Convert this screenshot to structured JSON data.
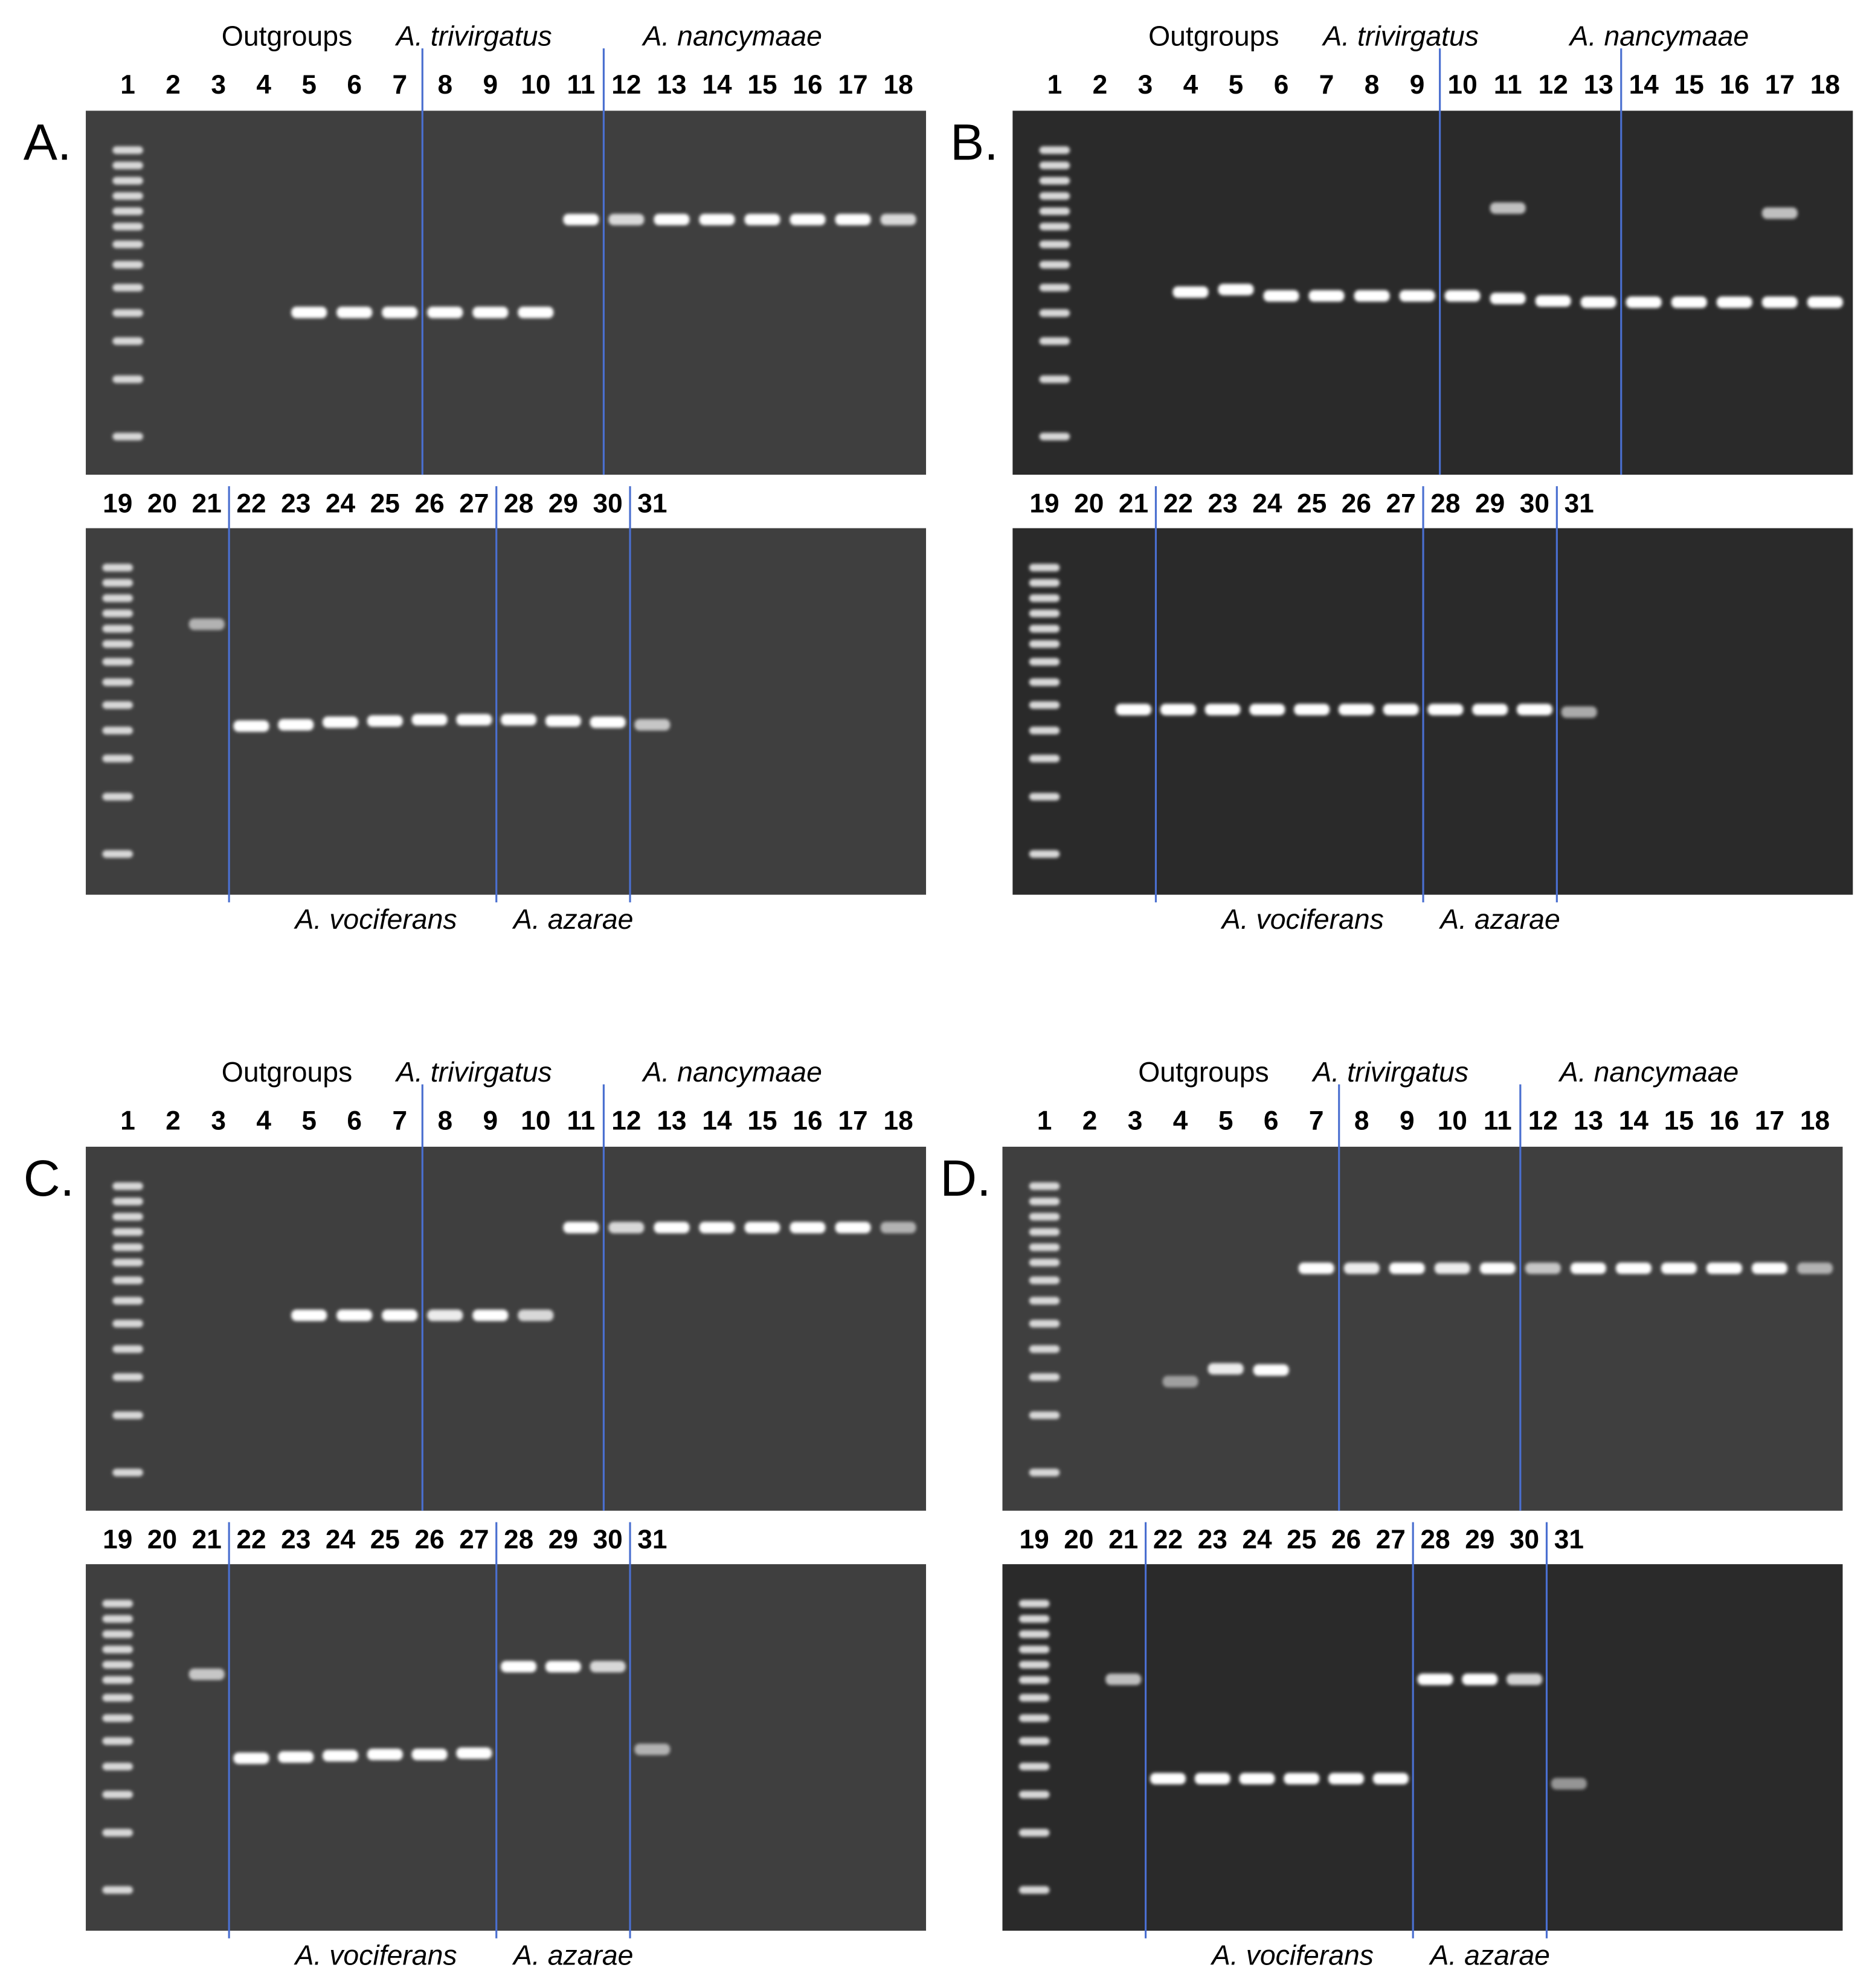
{
  "panels": [
    {
      "label": "A.",
      "top": {
        "groups": [
          "Outgroups",
          "A. trivirgatus",
          "A. nancymaae"
        ],
        "lanes": [
          "1",
          "2",
          "3",
          "4",
          "5",
          "6",
          "7",
          "8",
          "9",
          "10",
          "11",
          "12",
          "13",
          "14",
          "15",
          "16",
          "17",
          "18"
        ]
      },
      "bottom": {
        "lanes": [
          "19",
          "20",
          "21",
          "22",
          "23",
          "24",
          "25",
          "26",
          "27",
          "28",
          "29",
          "30",
          "31"
        ],
        "groups": [
          "A. vociferans",
          "A. azarae"
        ]
      }
    },
    {
      "label": "B.",
      "top": {
        "groups": [
          "Outgroups",
          "A. trivirgatus",
          "A. nancymaae"
        ],
        "lanes": [
          "1",
          "2",
          "3",
          "4",
          "5",
          "6",
          "7",
          "8",
          "9",
          "10",
          "11",
          "12",
          "13",
          "14",
          "15",
          "16",
          "17",
          "18"
        ]
      },
      "bottom": {
        "lanes": [
          "19",
          "20",
          "21",
          "22",
          "23",
          "24",
          "25",
          "26",
          "27",
          "28",
          "29",
          "30",
          "31"
        ],
        "groups": [
          "A. vociferans",
          "A. azarae"
        ]
      }
    },
    {
      "label": "C.",
      "top": {
        "groups": [
          "Outgroups",
          "A. trivirgatus",
          "A. nancymaae"
        ],
        "lanes": [
          "1",
          "2",
          "3",
          "4",
          "5",
          "6",
          "7",
          "8",
          "9",
          "10",
          "11",
          "12",
          "13",
          "14",
          "15",
          "16",
          "17",
          "18"
        ]
      },
      "bottom": {
        "lanes": [
          "19",
          "20",
          "21",
          "22",
          "23",
          "24",
          "25",
          "26",
          "27",
          "28",
          "29",
          "30",
          "31"
        ],
        "groups": [
          "A. vociferans",
          "A. azarae"
        ]
      }
    },
    {
      "label": "D.",
      "top": {
        "groups": [
          "Outgroups",
          "A. trivirgatus",
          "A. nancymaae"
        ],
        "lanes": [
          "1",
          "2",
          "3",
          "4",
          "5",
          "6",
          "7",
          "8",
          "9",
          "10",
          "11",
          "12",
          "13",
          "14",
          "15",
          "16",
          "17",
          "18"
        ]
      },
      "bottom": {
        "lanes": [
          "19",
          "20",
          "21",
          "22",
          "23",
          "24",
          "25",
          "26",
          "27",
          "28",
          "29",
          "30",
          "31"
        ],
        "groups": [
          "A. vociferans",
          "A. azarae"
        ]
      }
    }
  ]
}
